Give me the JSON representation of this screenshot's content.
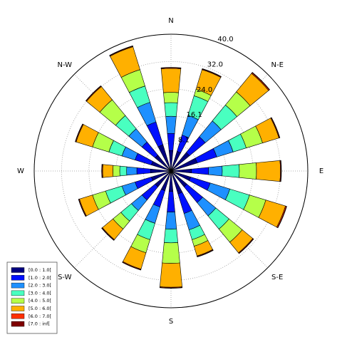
{
  "chart_data": {
    "type": "windrose",
    "directions": [
      "N",
      null,
      "N-E",
      null,
      "E",
      null,
      "S-E",
      null,
      "S",
      null,
      "S-W",
      null,
      "W",
      null,
      "N-W",
      null
    ],
    "rlim": [
      0,
      40
    ],
    "rticks": [
      8.1,
      16.1,
      {
        "value": 24,
        "label": "24.0"
      },
      {
        "value": 32,
        "label": "32.0"
      },
      {
        "value": 40,
        "label": "40.0"
      }
    ],
    "grid": true,
    "legend": "lower left",
    "series": [
      {
        "name": "[0.0 : 1.0[",
        "color": "#00007f",
        "values": [
          6,
          6,
          7,
          8,
          6,
          6,
          6,
          7,
          6,
          6,
          6,
          6,
          6,
          6,
          6,
          8
        ]
      },
      {
        "name": "[1.0 : 2.0[",
        "color": "#0010ff",
        "values": [
          5,
          5,
          6,
          6,
          5,
          6,
          6,
          6,
          6,
          5,
          5,
          5,
          4,
          5,
          5,
          7
        ]
      },
      {
        "name": "[2.0 : 3.0[",
        "color": "#1e90ff",
        "values": [
          5,
          6,
          6,
          5,
          4,
          6,
          5,
          5,
          5,
          5,
          4,
          4,
          3,
          4,
          5,
          6
        ]
      },
      {
        "name": "[3.0 : 4.0[",
        "color": "#49ffc0",
        "values": [
          4,
          6,
          6,
          4,
          5,
          6,
          5,
          3,
          4,
          5,
          4,
          5,
          2,
          4,
          5,
          5
        ]
      },
      {
        "name": "[4.0 : 5.0[",
        "color": "#b5ff49",
        "values": [
          3,
          2,
          5,
          5,
          5,
          5,
          5,
          2,
          6,
          4,
          3,
          4,
          2,
          5,
          6,
          5
        ]
      },
      {
        "name": "[5.0 : 6.0[",
        "color": "#ffb000",
        "values": [
          7,
          6,
          7,
          5,
          7,
          6,
          4,
          3,
          7,
          5,
          4,
          4,
          3,
          5,
          5,
          7
        ]
      },
      {
        "name": "[6.0 : 7.0[",
        "color": "#ff3000",
        "values": [
          0.2,
          0.2,
          0.3,
          0.2,
          0.2,
          0.3,
          0.2,
          0.2,
          0.2,
          0.2,
          0.2,
          0.2,
          0.2,
          0.2,
          0.2,
          0.2
        ]
      },
      {
        "name": "[7.0 : inf[",
        "color": "#7f0000",
        "values": [
          0.1,
          0.1,
          0.1,
          0.1,
          0.1,
          0.1,
          0.1,
          0.1,
          0.1,
          0.1,
          0.1,
          0.1,
          0.1,
          0.1,
          0.1,
          0.1
        ]
      }
    ]
  }
}
